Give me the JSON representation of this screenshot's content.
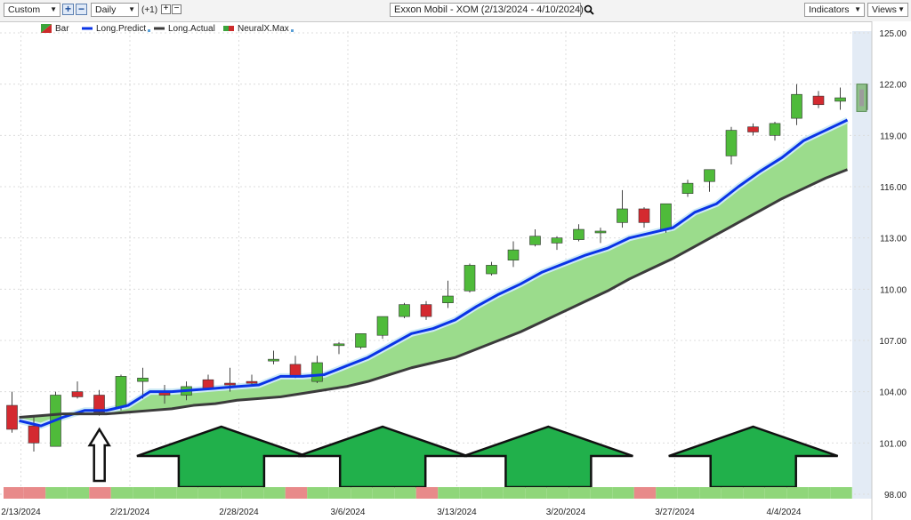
{
  "toolbar": {
    "preset": "Custom",
    "period": "Daily",
    "offset": "(+1)",
    "title": "Exxon Mobil - XOM (2/13/2024 - 4/10/2024)",
    "indicators": "Indicators",
    "views": "Views"
  },
  "legend": [
    {
      "label": "Bar",
      "kind": "bar-icon",
      "color": "#cc2b2b"
    },
    {
      "label": "Long.Predict",
      "kind": "line",
      "color": "#0a34e6"
    },
    {
      "label": "Long.Actual",
      "kind": "line",
      "color": "#3b3b3b"
    },
    {
      "label": "NeuralX.Max",
      "kind": "bar-icon",
      "color": "#cc2b2b"
    }
  ],
  "colors": {
    "up": "#4fbb3a",
    "down": "#d42a30",
    "predict": "#0a34e6",
    "actual": "#3b3b3b",
    "band_fill": "#9bdc8c",
    "arrow_fill": "#21b04b",
    "strip_up": "#8fd67a",
    "strip_down": "#e88a8a"
  },
  "chart_data": {
    "type": "candlestick",
    "title": "Exxon Mobil - XOM (2/13/2024 - 4/10/2024)",
    "y_axis": {
      "min": 98,
      "max": 125,
      "ticks": [
        98.0,
        101.0,
        104.0,
        107.0,
        110.0,
        113.0,
        116.0,
        119.0,
        122.0,
        125.0
      ],
      "position": "right"
    },
    "x_ticks": [
      "2/13/2024",
      "2/21/2024",
      "2/28/2024",
      "3/6/2024",
      "3/13/2024",
      "3/20/2024",
      "3/27/2024",
      "4/4/2024"
    ],
    "x_tick_index": [
      0,
      5,
      10,
      15,
      20,
      25,
      30,
      35
    ],
    "grid": true,
    "candles": [
      {
        "o": 103.2,
        "h": 104.0,
        "l": 101.6,
        "c": 101.8
      },
      {
        "o": 102.0,
        "h": 102.5,
        "l": 100.5,
        "c": 101.0
      },
      {
        "o": 100.8,
        "h": 104.0,
        "l": 100.8,
        "c": 103.8
      },
      {
        "o": 104.0,
        "h": 104.6,
        "l": 103.6,
        "c": 103.7
      },
      {
        "o": 103.8,
        "h": 104.1,
        "l": 102.6,
        "c": 102.8
      },
      {
        "o": 103.1,
        "h": 105.0,
        "l": 102.9,
        "c": 104.9
      },
      {
        "o": 104.6,
        "h": 105.4,
        "l": 103.6,
        "c": 104.8
      },
      {
        "o": 104.0,
        "h": 104.4,
        "l": 103.3,
        "c": 103.8
      },
      {
        "o": 103.8,
        "h": 104.6,
        "l": 103.5,
        "c": 104.3
      },
      {
        "o": 104.7,
        "h": 105.0,
        "l": 104.1,
        "c": 104.2
      },
      {
        "o": 104.5,
        "h": 105.4,
        "l": 104.0,
        "c": 104.4
      },
      {
        "o": 104.6,
        "h": 105.0,
        "l": 104.4,
        "c": 104.5
      },
      {
        "o": 105.8,
        "h": 106.4,
        "l": 105.6,
        "c": 105.9
      },
      {
        "o": 105.6,
        "h": 106.1,
        "l": 104.8,
        "c": 104.9
      },
      {
        "o": 104.6,
        "h": 106.1,
        "l": 104.5,
        "c": 105.7
      },
      {
        "o": 106.7,
        "h": 106.9,
        "l": 106.2,
        "c": 106.8
      },
      {
        "o": 106.6,
        "h": 107.4,
        "l": 106.5,
        "c": 107.4
      },
      {
        "o": 107.3,
        "h": 108.4,
        "l": 107.1,
        "c": 108.4
      },
      {
        "o": 108.4,
        "h": 109.2,
        "l": 108.3,
        "c": 109.1
      },
      {
        "o": 109.1,
        "h": 109.3,
        "l": 108.2,
        "c": 108.4
      },
      {
        "o": 109.2,
        "h": 110.5,
        "l": 108.9,
        "c": 109.6
      },
      {
        "o": 109.9,
        "h": 111.5,
        "l": 109.8,
        "c": 111.4
      },
      {
        "o": 110.9,
        "h": 111.6,
        "l": 110.8,
        "c": 111.4
      },
      {
        "o": 111.7,
        "h": 112.8,
        "l": 111.3,
        "c": 112.3
      },
      {
        "o": 112.6,
        "h": 113.5,
        "l": 112.5,
        "c": 113.1
      },
      {
        "o": 112.7,
        "h": 113.1,
        "l": 112.3,
        "c": 113.0
      },
      {
        "o": 112.9,
        "h": 113.8,
        "l": 112.8,
        "c": 113.5
      },
      {
        "o": 113.3,
        "h": 113.6,
        "l": 112.7,
        "c": 113.4
      },
      {
        "o": 113.9,
        "h": 115.8,
        "l": 113.6,
        "c": 114.7
      },
      {
        "o": 114.7,
        "h": 114.8,
        "l": 113.6,
        "c": 113.9
      },
      {
        "o": 113.5,
        "h": 115.0,
        "l": 113.3,
        "c": 115.0
      },
      {
        "o": 115.6,
        "h": 116.4,
        "l": 115.4,
        "c": 116.2
      },
      {
        "o": 116.3,
        "h": 117.0,
        "l": 115.7,
        "c": 117.0
      },
      {
        "o": 117.8,
        "h": 119.5,
        "l": 117.3,
        "c": 119.3
      },
      {
        "o": 119.5,
        "h": 119.7,
        "l": 119.0,
        "c": 119.2
      },
      {
        "o": 119.0,
        "h": 119.8,
        "l": 118.7,
        "c": 119.7
      },
      {
        "o": 120.0,
        "h": 122.0,
        "l": 119.6,
        "c": 121.4
      },
      {
        "o": 121.3,
        "h": 121.6,
        "l": 120.6,
        "c": 120.8
      },
      {
        "o": 121.0,
        "h": 121.8,
        "l": 120.5,
        "c": 121.2
      },
      {
        "o": 120.5,
        "h": 122.0,
        "l": 120.5,
        "c": 122.0
      }
    ],
    "series": [
      {
        "name": "Long.Predict",
        "values": [
          102.3,
          102.0,
          102.5,
          102.9,
          102.9,
          103.2,
          104.0,
          104.0,
          104.1,
          104.2,
          104.3,
          104.4,
          104.9,
          104.9,
          105.0,
          105.5,
          106.0,
          106.7,
          107.4,
          107.7,
          108.2,
          109.0,
          109.7,
          110.3,
          111.0,
          111.5,
          112.0,
          112.4,
          113.0,
          113.3,
          113.6,
          114.5,
          115.0,
          116.0,
          116.9,
          117.7,
          118.7,
          119.3,
          119.9
        ]
      },
      {
        "name": "Long.Actual",
        "values": [
          102.5,
          102.6,
          102.7,
          102.7,
          102.7,
          102.8,
          102.9,
          103.0,
          103.2,
          103.3,
          103.5,
          103.6,
          103.7,
          103.9,
          104.1,
          104.3,
          104.6,
          105.0,
          105.4,
          105.7,
          106.0,
          106.5,
          107.0,
          107.5,
          108.1,
          108.7,
          109.3,
          109.9,
          110.6,
          111.2,
          111.8,
          112.5,
          113.2,
          113.9,
          114.6,
          115.3,
          115.9,
          116.5,
          117.0
        ]
      }
    ],
    "neuralx_max": {
      "o": 122.0,
      "h": 122.0,
      "l": 120.4,
      "c": 120.4
    },
    "signal_strip": [
      "down",
      "down",
      "up",
      "up",
      "down",
      "up",
      "up",
      "up",
      "up",
      "up",
      "up",
      "up",
      "up",
      "down",
      "up",
      "up",
      "up",
      "up",
      "up",
      "down",
      "up",
      "up",
      "up",
      "up",
      "up",
      "up",
      "up",
      "up",
      "up",
      "down",
      "up",
      "up",
      "up",
      "up",
      "up",
      "up",
      "up",
      "up",
      "up"
    ],
    "arrows": [
      {
        "at": 3.6,
        "size": "small"
      },
      {
        "at": 9.2,
        "size": "large"
      },
      {
        "at": 16.6,
        "size": "large"
      },
      {
        "at": 24.2,
        "size": "large"
      },
      {
        "at": 33.6,
        "size": "large"
      }
    ]
  }
}
